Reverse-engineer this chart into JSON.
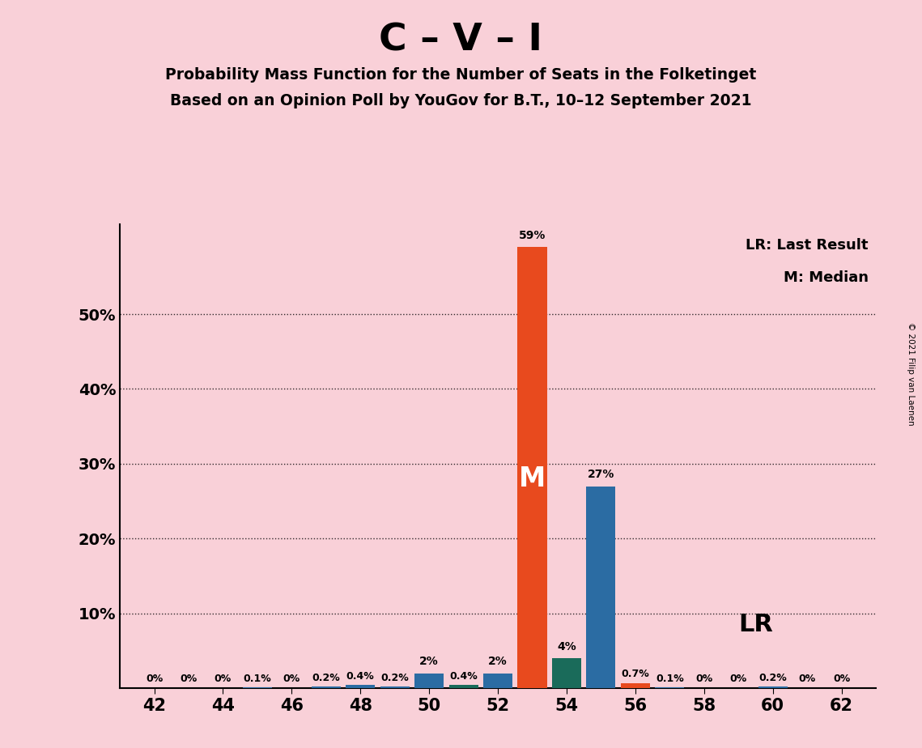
{
  "title": "C – V – I",
  "subtitle1": "Probability Mass Function for the Number of Seats in the Folketinget",
  "subtitle2": "Based on an Opinion Poll by YouGov for B.T., 10–12 September 2021",
  "copyright": "© 2021 Filip van Laenen",
  "background_color": "#f9d0d8",
  "bar_color_orange": "#e84a1e",
  "bar_color_blue": "#2b6ca3",
  "bar_color_teal": "#1a6b5a",
  "seat_probs": {
    "42": 0.0,
    "43": 0.0,
    "44": 0.0,
    "45": 0.1,
    "46": 0.0,
    "47": 0.2,
    "48": 0.4,
    "49": 0.2,
    "50": 2.0,
    "51": 0.4,
    "52": 2.0,
    "53": 59.0,
    "54": 4.0,
    "55": 27.0,
    "56": 0.7,
    "57": 0.1,
    "58": 0.0,
    "59": 0.0,
    "60": 0.2,
    "61": 0.0,
    "62": 0.0
  },
  "seat_labels": {
    "42": "0%",
    "43": "0%",
    "44": "0%",
    "45": "0.1%",
    "46": "0%",
    "47": "0.2%",
    "48": "0.4%",
    "49": "0.2%",
    "50": "2%",
    "51": "0.4%",
    "52": "2%",
    "53": "59%",
    "54": "4%",
    "55": "27%",
    "56": "0.7%",
    "57": "0.1%",
    "58": "0%",
    "59": "0%",
    "60": "0.2%",
    "61": "0%",
    "62": "0%"
  },
  "seat_colors": {
    "42": "blue",
    "43": "blue",
    "44": "blue",
    "45": "blue",
    "46": "blue",
    "47": "blue",
    "48": "blue",
    "49": "blue",
    "50": "blue",
    "51": "teal",
    "52": "blue",
    "53": "orange",
    "54": "teal",
    "55": "blue",
    "56": "orange",
    "57": "blue",
    "58": "blue",
    "59": "blue",
    "60": "blue",
    "61": "blue",
    "62": "blue"
  },
  "median_seat": 53,
  "lr_seat": 56,
  "xlim": [
    41.0,
    63.0
  ],
  "ylim": [
    0,
    62
  ],
  "xticks": [
    42,
    44,
    46,
    48,
    50,
    52,
    54,
    56,
    58,
    60,
    62
  ],
  "yticks": [
    10,
    20,
    30,
    40,
    50
  ],
  "ytick_labels_left": [
    "10%",
    "20%",
    "30%",
    "40%",
    "50%"
  ],
  "ytick_positions_left": [
    10,
    20,
    30,
    40,
    50
  ],
  "legend_lr": "LR: Last Result",
  "legend_m": "M: Median",
  "bar_width": 0.85
}
